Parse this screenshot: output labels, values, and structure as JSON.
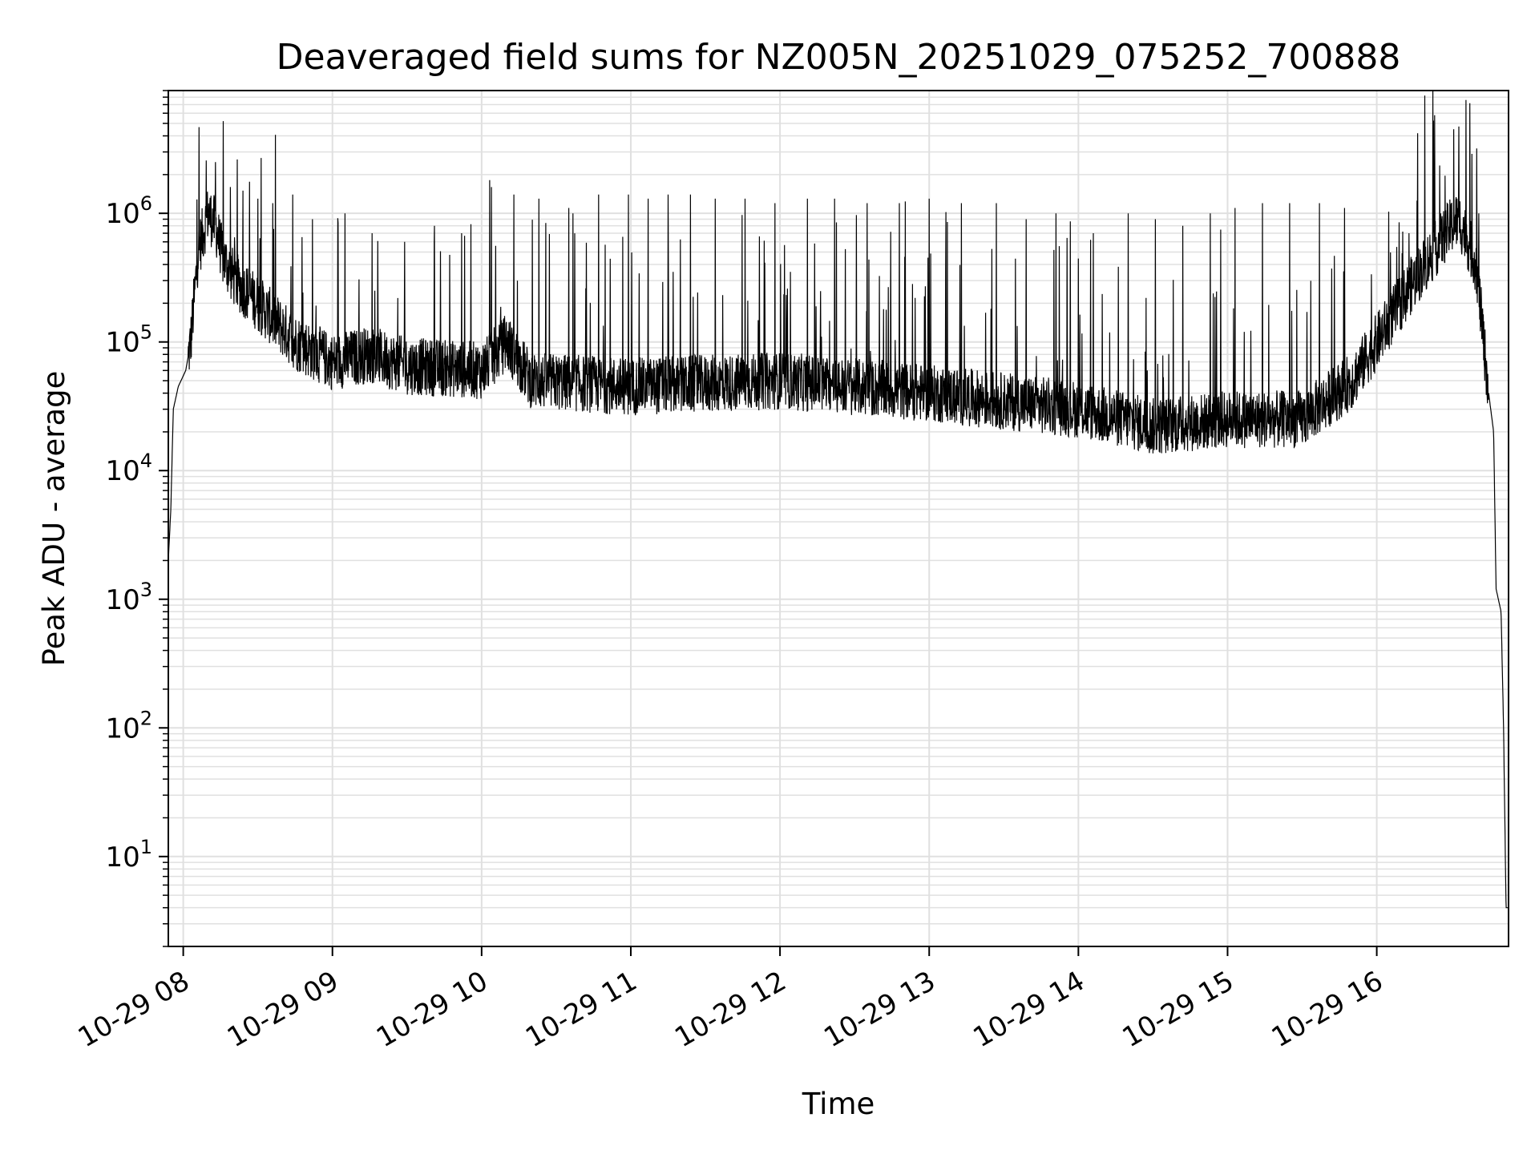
{
  "chart_data": {
    "type": "line",
    "title": "Deaveraged field sums for NZ005N_20251029_075252_700888",
    "xlabel": "Time",
    "ylabel": "Peak ADU - average",
    "yscale": "log",
    "ylim": [
      2,
      9000000
    ],
    "xlim": [
      "10-29 07:54",
      "10-29 16:53"
    ],
    "grid": true,
    "grid_minor": true,
    "line_color": "#000000",
    "grid_color": "#e0e0e0",
    "x_ticks": [
      {
        "time": "10-29 08:00",
        "label": "10-29 08"
      },
      {
        "time": "10-29 09:00",
        "label": "10-29 09"
      },
      {
        "time": "10-29 10:00",
        "label": "10-29 10"
      },
      {
        "time": "10-29 11:00",
        "label": "10-29 11"
      },
      {
        "time": "10-29 12:00",
        "label": "10-29 12"
      },
      {
        "time": "10-29 13:00",
        "label": "10-29 13"
      },
      {
        "time": "10-29 14:00",
        "label": "10-29 14"
      },
      {
        "time": "10-29 15:00",
        "label": "10-29 15"
      },
      {
        "time": "10-29 16:00",
        "label": "10-29 16"
      }
    ],
    "y_ticks": [
      {
        "value": 10,
        "base": "10",
        "exp": "1"
      },
      {
        "value": 100,
        "base": "10",
        "exp": "2"
      },
      {
        "value": 1000,
        "base": "10",
        "exp": "3"
      },
      {
        "value": 10000,
        "base": "10",
        "exp": "4"
      },
      {
        "value": 100000,
        "base": "10",
        "exp": "5"
      },
      {
        "value": 1000000,
        "base": "10",
        "exp": "6"
      }
    ],
    "series": [
      {
        "baseline": [
          [
            "10-29 07:54",
            2000
          ],
          [
            "10-29 07:55",
            5000
          ],
          [
            "10-29 07:56",
            30000
          ],
          [
            "10-29 07:58",
            45000
          ],
          [
            "10-29 08:01",
            60000
          ],
          [
            "10-29 08:03",
            100000
          ],
          [
            "10-29 08:06",
            500000
          ],
          [
            "10-29 08:10",
            1000000
          ],
          [
            "10-29 08:13",
            800000
          ],
          [
            "10-29 08:16",
            450000
          ],
          [
            "10-29 08:21",
            300000
          ],
          [
            "10-29 08:30",
            200000
          ],
          [
            "10-29 08:45",
            100000
          ],
          [
            "10-29 09:00",
            70000
          ],
          [
            "10-29 09:15",
            80000
          ],
          [
            "10-29 09:30",
            65000
          ],
          [
            "10-29 10:00",
            60000
          ],
          [
            "10-29 10:10",
            100000
          ],
          [
            "10-29 10:20",
            50000
          ],
          [
            "10-29 11:00",
            45000
          ],
          [
            "10-29 12:00",
            50000
          ],
          [
            "10-29 13:00",
            40000
          ],
          [
            "10-29 14:00",
            30000
          ],
          [
            "10-29 14:30",
            22000
          ],
          [
            "10-29 15:00",
            25000
          ],
          [
            "10-29 15:30",
            25000
          ],
          [
            "10-29 15:50",
            50000
          ],
          [
            "10-29 16:00",
            100000
          ],
          [
            "10-29 16:15",
            300000
          ],
          [
            "10-29 16:30",
            800000
          ],
          [
            "10-29 16:33",
            900000
          ],
          [
            "10-29 16:36",
            650000
          ],
          [
            "10-29 16:40",
            400000
          ],
          [
            "10-29 16:45",
            40000
          ],
          [
            "10-29 16:47",
            20000
          ],
          [
            "10-29 16:48",
            1200
          ],
          [
            "10-29 16:50",
            800
          ],
          [
            "10-29 16:51",
            100
          ],
          [
            "10-29 16:52",
            4
          ],
          [
            "10-29 16:53",
            4
          ]
        ],
        "spikes": [
          [
            "10-29 08:13",
            2500000
          ],
          [
            "10-29 08:19",
            1600000
          ],
          [
            "10-29 08:24",
            1500000
          ],
          [
            "10-29 08:30",
            1300000
          ],
          [
            "10-29 08:36",
            1200000
          ],
          [
            "10-29 08:44",
            1400000
          ],
          [
            "10-29 08:52",
            900000
          ],
          [
            "10-29 09:05",
            1000000
          ],
          [
            "10-29 09:16",
            700000
          ],
          [
            "10-29 09:29",
            600000
          ],
          [
            "10-29 09:41",
            800000
          ],
          [
            "10-29 09:52",
            700000
          ],
          [
            "10-29 10:04",
            1600000
          ],
          [
            "10-29 10:13",
            1400000
          ],
          [
            "10-29 10:23",
            1300000
          ],
          [
            "10-29 10:35",
            1100000
          ],
          [
            "10-29 10:47",
            1400000
          ],
          [
            "10-29 10:59",
            1400000
          ],
          [
            "10-29 11:07",
            1300000
          ],
          [
            "10-29 11:15",
            1400000
          ],
          [
            "10-29 11:24",
            1400000
          ],
          [
            "10-29 11:34",
            1300000
          ],
          [
            "10-29 11:46",
            1300000
          ],
          [
            "10-29 11:58",
            1200000
          ],
          [
            "10-29 12:11",
            1300000
          ],
          [
            "10-29 12:22",
            1300000
          ],
          [
            "10-29 12:35",
            1200000
          ],
          [
            "10-29 12:48",
            1200000
          ],
          [
            "10-29 13:00",
            1300000
          ],
          [
            "10-29 13:13",
            1200000
          ],
          [
            "10-29 13:27",
            1200000
          ],
          [
            "10-29 13:39",
            900000
          ],
          [
            "10-29 13:51",
            1000000
          ],
          [
            "10-29 14:06",
            700000
          ],
          [
            "10-29 14:20",
            1000000
          ],
          [
            "10-29 14:31",
            900000
          ],
          [
            "10-29 14:42",
            800000
          ],
          [
            "10-29 14:53",
            1000000
          ],
          [
            "10-29 15:03",
            1100000
          ],
          [
            "10-29 15:14",
            1200000
          ],
          [
            "10-29 15:25",
            1200000
          ],
          [
            "10-29 15:37",
            1200000
          ],
          [
            "10-29 15:47",
            1100000
          ],
          [
            "10-29 16:13",
            700000
          ],
          [
            "10-29 16:31",
            4500000
          ],
          [
            "10-29 16:41",
            1000000
          ]
        ]
      }
    ]
  }
}
